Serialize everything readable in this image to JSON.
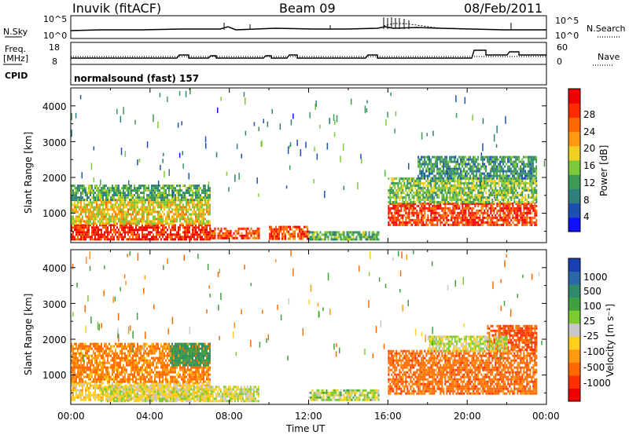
{
  "header": {
    "station": "Inuvik (fitACF)",
    "beam": "Beam 09",
    "date": "08/Feb/2011"
  },
  "aux": {
    "nsky_label": "N.Sky",
    "nsky_ticks": [
      "10^5",
      "10^0"
    ],
    "nsearch_label": "N.Search",
    "nsearch_ticks": [
      "10^5",
      "10^0"
    ],
    "freq_label_1": "Freq.",
    "freq_label_2": "[MHz]",
    "freq_ticks": [
      "18",
      "8"
    ],
    "nave_label": "Nave",
    "nave_ticks": [
      "60",
      "0"
    ],
    "cpid_label": "CPID",
    "cpid_value": "normalsound (fast) 157"
  },
  "axes": {
    "ylabel": "Slant Range [km]",
    "xlabel": "Time UT",
    "x_ticks": [
      "00:00",
      "04:00",
      "08:00",
      "12:00",
      "16:00",
      "20:00",
      "00:00"
    ],
    "y_ticks": [
      "1000",
      "2000",
      "3000",
      "4000"
    ]
  },
  "colorbars": {
    "power": {
      "label": "Power [dB]",
      "ticks": [
        "28",
        "24",
        "20",
        "16",
        "12",
        "8",
        "4"
      ],
      "colors": [
        "#1010ff",
        "#1e4fb0",
        "#2f7f7f",
        "#3c9a56",
        "#7cc83a",
        "#f0d020",
        "#ff9a10",
        "#ff6a00",
        "#ff2a00",
        "#ee0000"
      ]
    },
    "velocity": {
      "label": "Velocity [m s⁻¹]",
      "ticks": [
        "1000",
        "500",
        "100",
        "25",
        "-25",
        "-100",
        "-500",
        "-1000"
      ],
      "colors": [
        "#1a3fb0",
        "#2a68a8",
        "#2f8a6a",
        "#3ea040",
        "#7ccc30",
        "#c8c8c8",
        "#ffcf20",
        "#ff9a10",
        "#ff6a00",
        "#ff3000",
        "#ee0000"
      ]
    }
  },
  "chart_data": [
    {
      "type": "heatmap",
      "title": "",
      "quantity": "Power [dB]",
      "xlabel": "Time UT",
      "ylabel": "Slant Range [km]",
      "xlim": [
        0,
        24
      ],
      "ylim": [
        180,
        4500
      ],
      "clim": [
        0,
        32
      ],
      "regions": [
        {
          "t0": 0.0,
          "t1": 7.0,
          "r0": 300,
          "r1": 700,
          "value": 28
        },
        {
          "t0": 7.0,
          "t1": 9.5,
          "r0": 300,
          "r1": 600,
          "value": 26
        },
        {
          "t0": 10.0,
          "t1": 12.0,
          "r0": 300,
          "r1": 650,
          "value": 26
        },
        {
          "t0": 12.0,
          "t1": 15.5,
          "r0": 300,
          "r1": 500,
          "value": 12
        },
        {
          "t0": 0.0,
          "t1": 7.0,
          "r0": 700,
          "r1": 1400,
          "value": 18
        },
        {
          "t0": 0.0,
          "t1": 7.0,
          "r0": 1400,
          "r1": 1800,
          "value": 12
        },
        {
          "t0": 16.0,
          "t1": 23.5,
          "r0": 700,
          "r1": 1300,
          "value": 27
        },
        {
          "t0": 16.0,
          "t1": 23.5,
          "r0": 1300,
          "r1": 2000,
          "value": 14
        },
        {
          "t0": 17.5,
          "t1": 23.5,
          "r0": 2000,
          "r1": 2600,
          "value": 10
        }
      ]
    },
    {
      "type": "heatmap",
      "title": "",
      "quantity": "Velocity [m s^-1]",
      "xlabel": "Time UT",
      "ylabel": "Slant Range [km]",
      "xlim": [
        0,
        24
      ],
      "ylim": [
        180,
        4500
      ],
      "regions": [
        {
          "t0": 0.0,
          "t1": 7.0,
          "r0": 300,
          "r1": 800,
          "value": 0
        },
        {
          "t0": 1.5,
          "t1": 9.5,
          "r0": 250,
          "r1": 700,
          "value": 30
        },
        {
          "t0": 0.0,
          "t1": 7.0,
          "r0": 800,
          "r1": 1900,
          "value": -100
        },
        {
          "t0": 5.0,
          "t1": 7.0,
          "r0": 1300,
          "r1": 1900,
          "value": 300
        },
        {
          "t0": 12.0,
          "t1": 15.5,
          "r0": 300,
          "r1": 600,
          "value": 50
        },
        {
          "t0": 16.0,
          "t1": 23.5,
          "r0": 500,
          "r1": 1700,
          "value": -200
        },
        {
          "t0": 21.0,
          "t1": 23.5,
          "r0": 1700,
          "r1": 2400,
          "value": -300
        },
        {
          "t0": 18.0,
          "t1": 22.0,
          "r0": 1700,
          "r1": 2100,
          "value": 40
        }
      ]
    }
  ]
}
